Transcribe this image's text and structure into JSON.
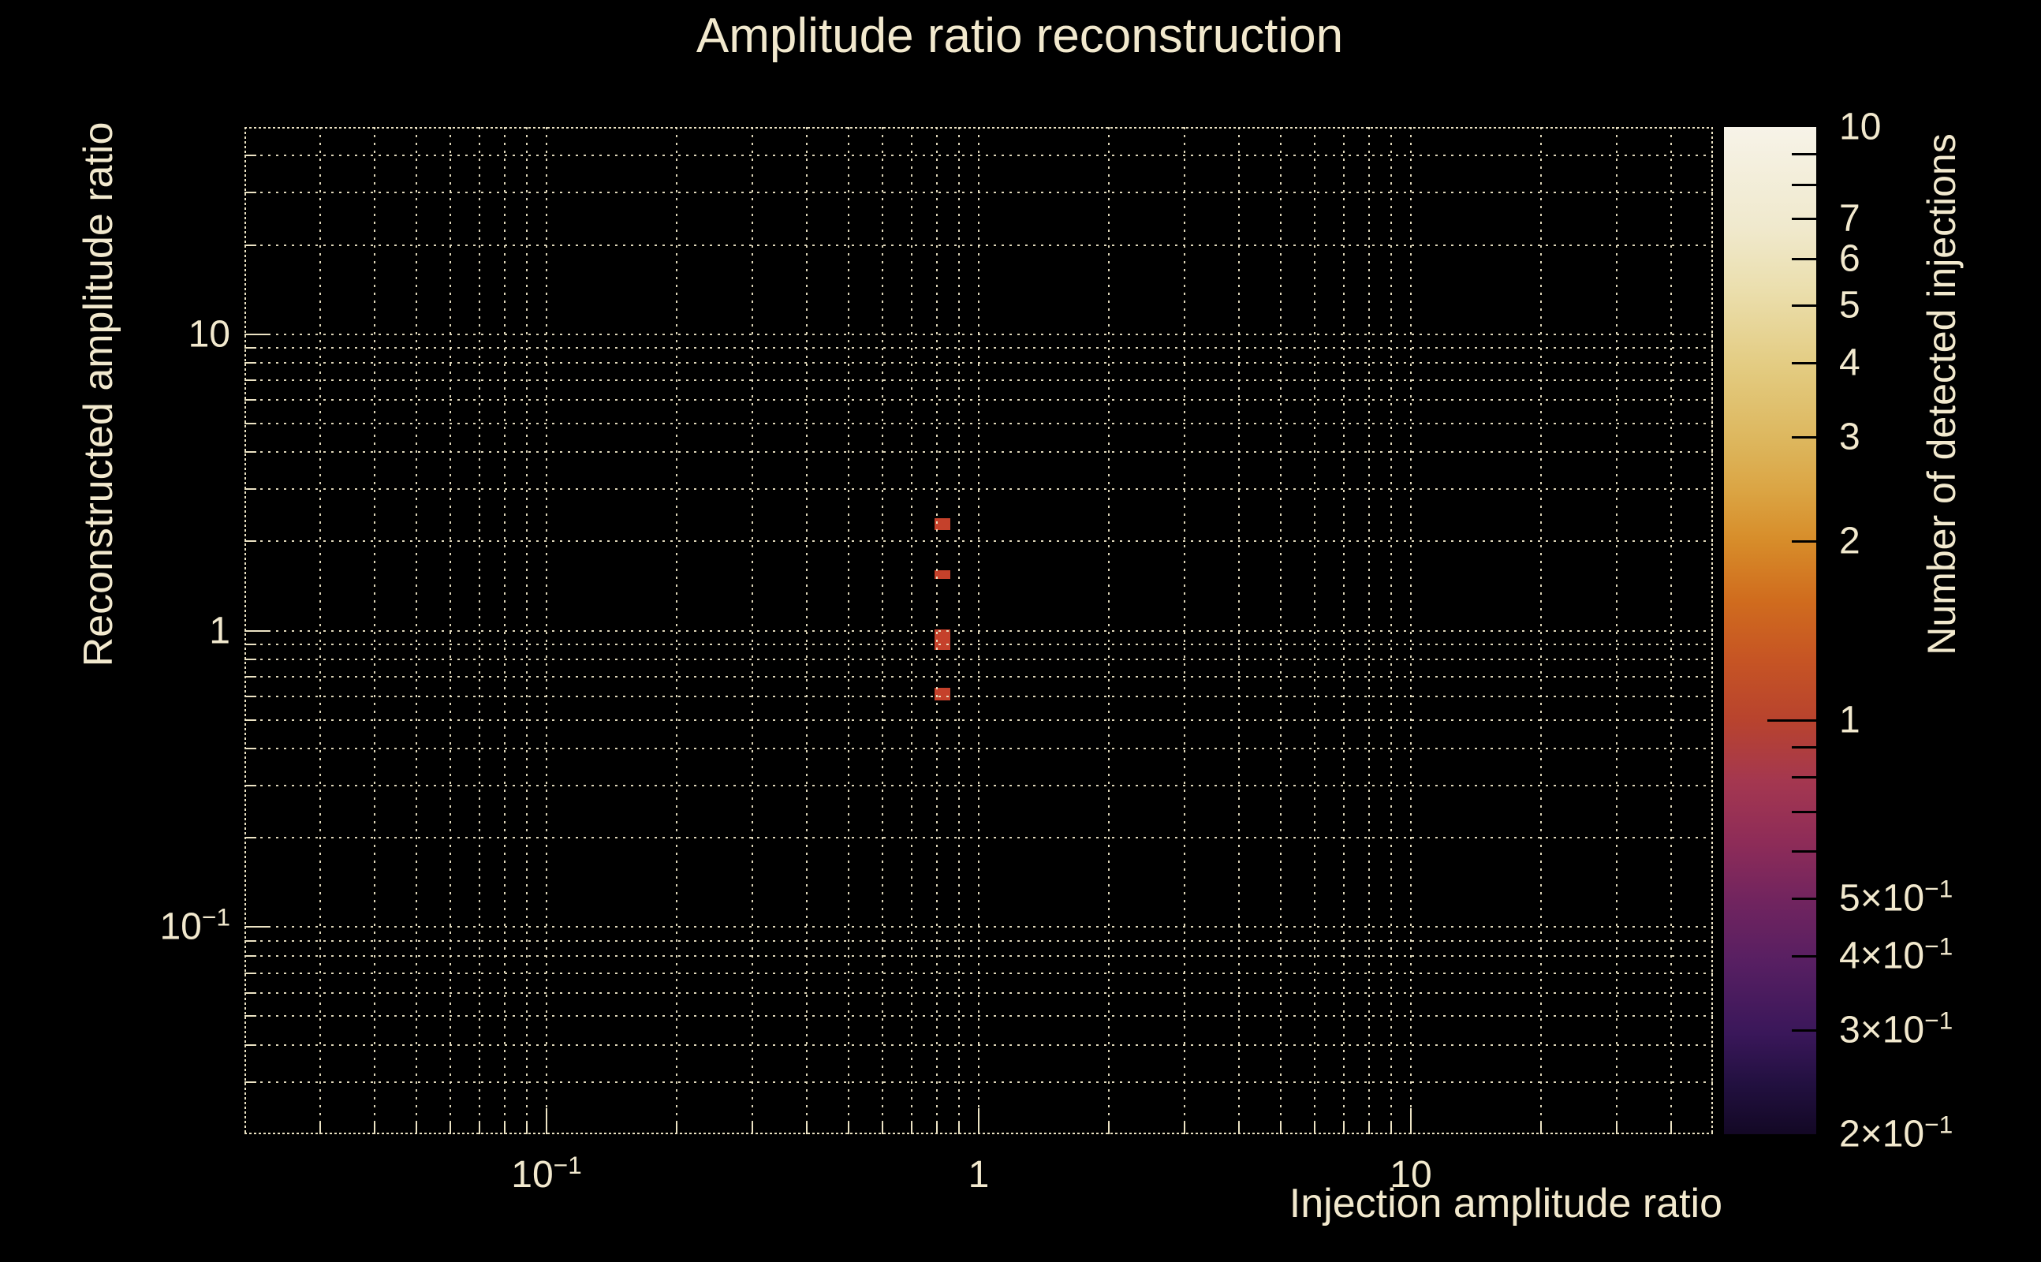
{
  "title": "Amplitude ratio reconstruction",
  "colors": {
    "background": "#000000",
    "foreground": "#f2e9ce",
    "grid": "#ece3c4",
    "cell": "#c5412b"
  },
  "x_axis": {
    "label": "Injection amplitude ratio",
    "scale": "log",
    "range": [
      0.02,
      50
    ],
    "ticks": [
      {
        "v": 0.1,
        "text": "10",
        "sup": "−1"
      },
      {
        "v": 1,
        "text": "1"
      },
      {
        "v": 10,
        "text": "10"
      }
    ]
  },
  "y_axis": {
    "label": "Reconstructed amplitude ratio",
    "scale": "log",
    "range": [
      0.02,
      50
    ],
    "ticks": [
      {
        "v": 10,
        "text": "10"
      },
      {
        "v": 1,
        "text": "1"
      },
      {
        "v": 0.1,
        "text": "10",
        "sup": "−1"
      }
    ]
  },
  "colorbar": {
    "label": "Number of detected injections",
    "scale": "log",
    "range": [
      0.2,
      10
    ],
    "tick_labels": [
      {
        "v": 10,
        "text": "10"
      },
      {
        "v": 7,
        "text": "7"
      },
      {
        "v": 6,
        "text": "6"
      },
      {
        "v": 5,
        "text": "5"
      },
      {
        "v": 4,
        "text": "4"
      },
      {
        "v": 3,
        "text": "3"
      },
      {
        "v": 2,
        "text": "2"
      },
      {
        "v": 1,
        "text": "1"
      },
      {
        "v": 0.5,
        "pre": "5×",
        "text": "10",
        "sup": "−1"
      },
      {
        "v": 0.4,
        "pre": "4×",
        "text": "10",
        "sup": "−1"
      },
      {
        "v": 0.3,
        "pre": "3×",
        "text": "10",
        "sup": "−1"
      },
      {
        "v": 0.2,
        "pre": "2×",
        "text": "10",
        "sup": "−1"
      }
    ],
    "minor_tick_marks": [
      9,
      8,
      7,
      6,
      5,
      4,
      3,
      2,
      0.9,
      0.8,
      0.7,
      0.6,
      0.5,
      0.4,
      0.3
    ],
    "major_tick_marks": [
      1
    ],
    "gradient": [
      {
        "p": 0,
        "c": "#f7f3e8"
      },
      {
        "p": 5,
        "c": "#f3eeda"
      },
      {
        "p": 10,
        "c": "#f0e9cd"
      },
      {
        "p": 16,
        "c": "#ebdfae"
      },
      {
        "p": 24,
        "c": "#e3cb80"
      },
      {
        "p": 31,
        "c": "#ddb75e"
      },
      {
        "p": 36,
        "c": "#dba544"
      },
      {
        "p": 41,
        "c": "#d78d2a"
      },
      {
        "p": 47,
        "c": "#d06c1e"
      },
      {
        "p": 53,
        "c": "#c65424"
      },
      {
        "p": 59,
        "c": "#b8432e"
      },
      {
        "p": 65,
        "c": "#a43750"
      },
      {
        "p": 71,
        "c": "#8e2c58"
      },
      {
        "p": 77,
        "c": "#70245f"
      },
      {
        "p": 83,
        "c": "#571f62"
      },
      {
        "p": 90,
        "c": "#3a175a"
      },
      {
        "p": 95,
        "c": "#221040"
      },
      {
        "p": 100,
        "c": "#130825"
      }
    ]
  },
  "chart_data": {
    "type": "heatmap",
    "title": "Amplitude ratio reconstruction",
    "xlabel": "Injection amplitude ratio",
    "ylabel": "Reconstructed amplitude ratio",
    "zlabel": "Number of detected injections",
    "xscale": "log",
    "yscale": "log",
    "zscale": "log",
    "xlim": [
      0.02,
      50
    ],
    "ylim": [
      0.02,
      50
    ],
    "zlim": [
      0.2,
      10
    ],
    "grid": true,
    "cells": [
      {
        "x": [
          0.79,
          0.86
        ],
        "y": [
          2.19,
          2.39
        ],
        "count": 1
      },
      {
        "x": [
          0.79,
          0.86
        ],
        "y": [
          1.49,
          1.6
        ],
        "count": 1
      },
      {
        "x": [
          0.79,
          0.86
        ],
        "y": [
          0.86,
          1.01
        ],
        "count": 1
      },
      {
        "x": [
          0.79,
          0.86
        ],
        "y": [
          0.58,
          0.64
        ],
        "count": 1
      }
    ]
  }
}
